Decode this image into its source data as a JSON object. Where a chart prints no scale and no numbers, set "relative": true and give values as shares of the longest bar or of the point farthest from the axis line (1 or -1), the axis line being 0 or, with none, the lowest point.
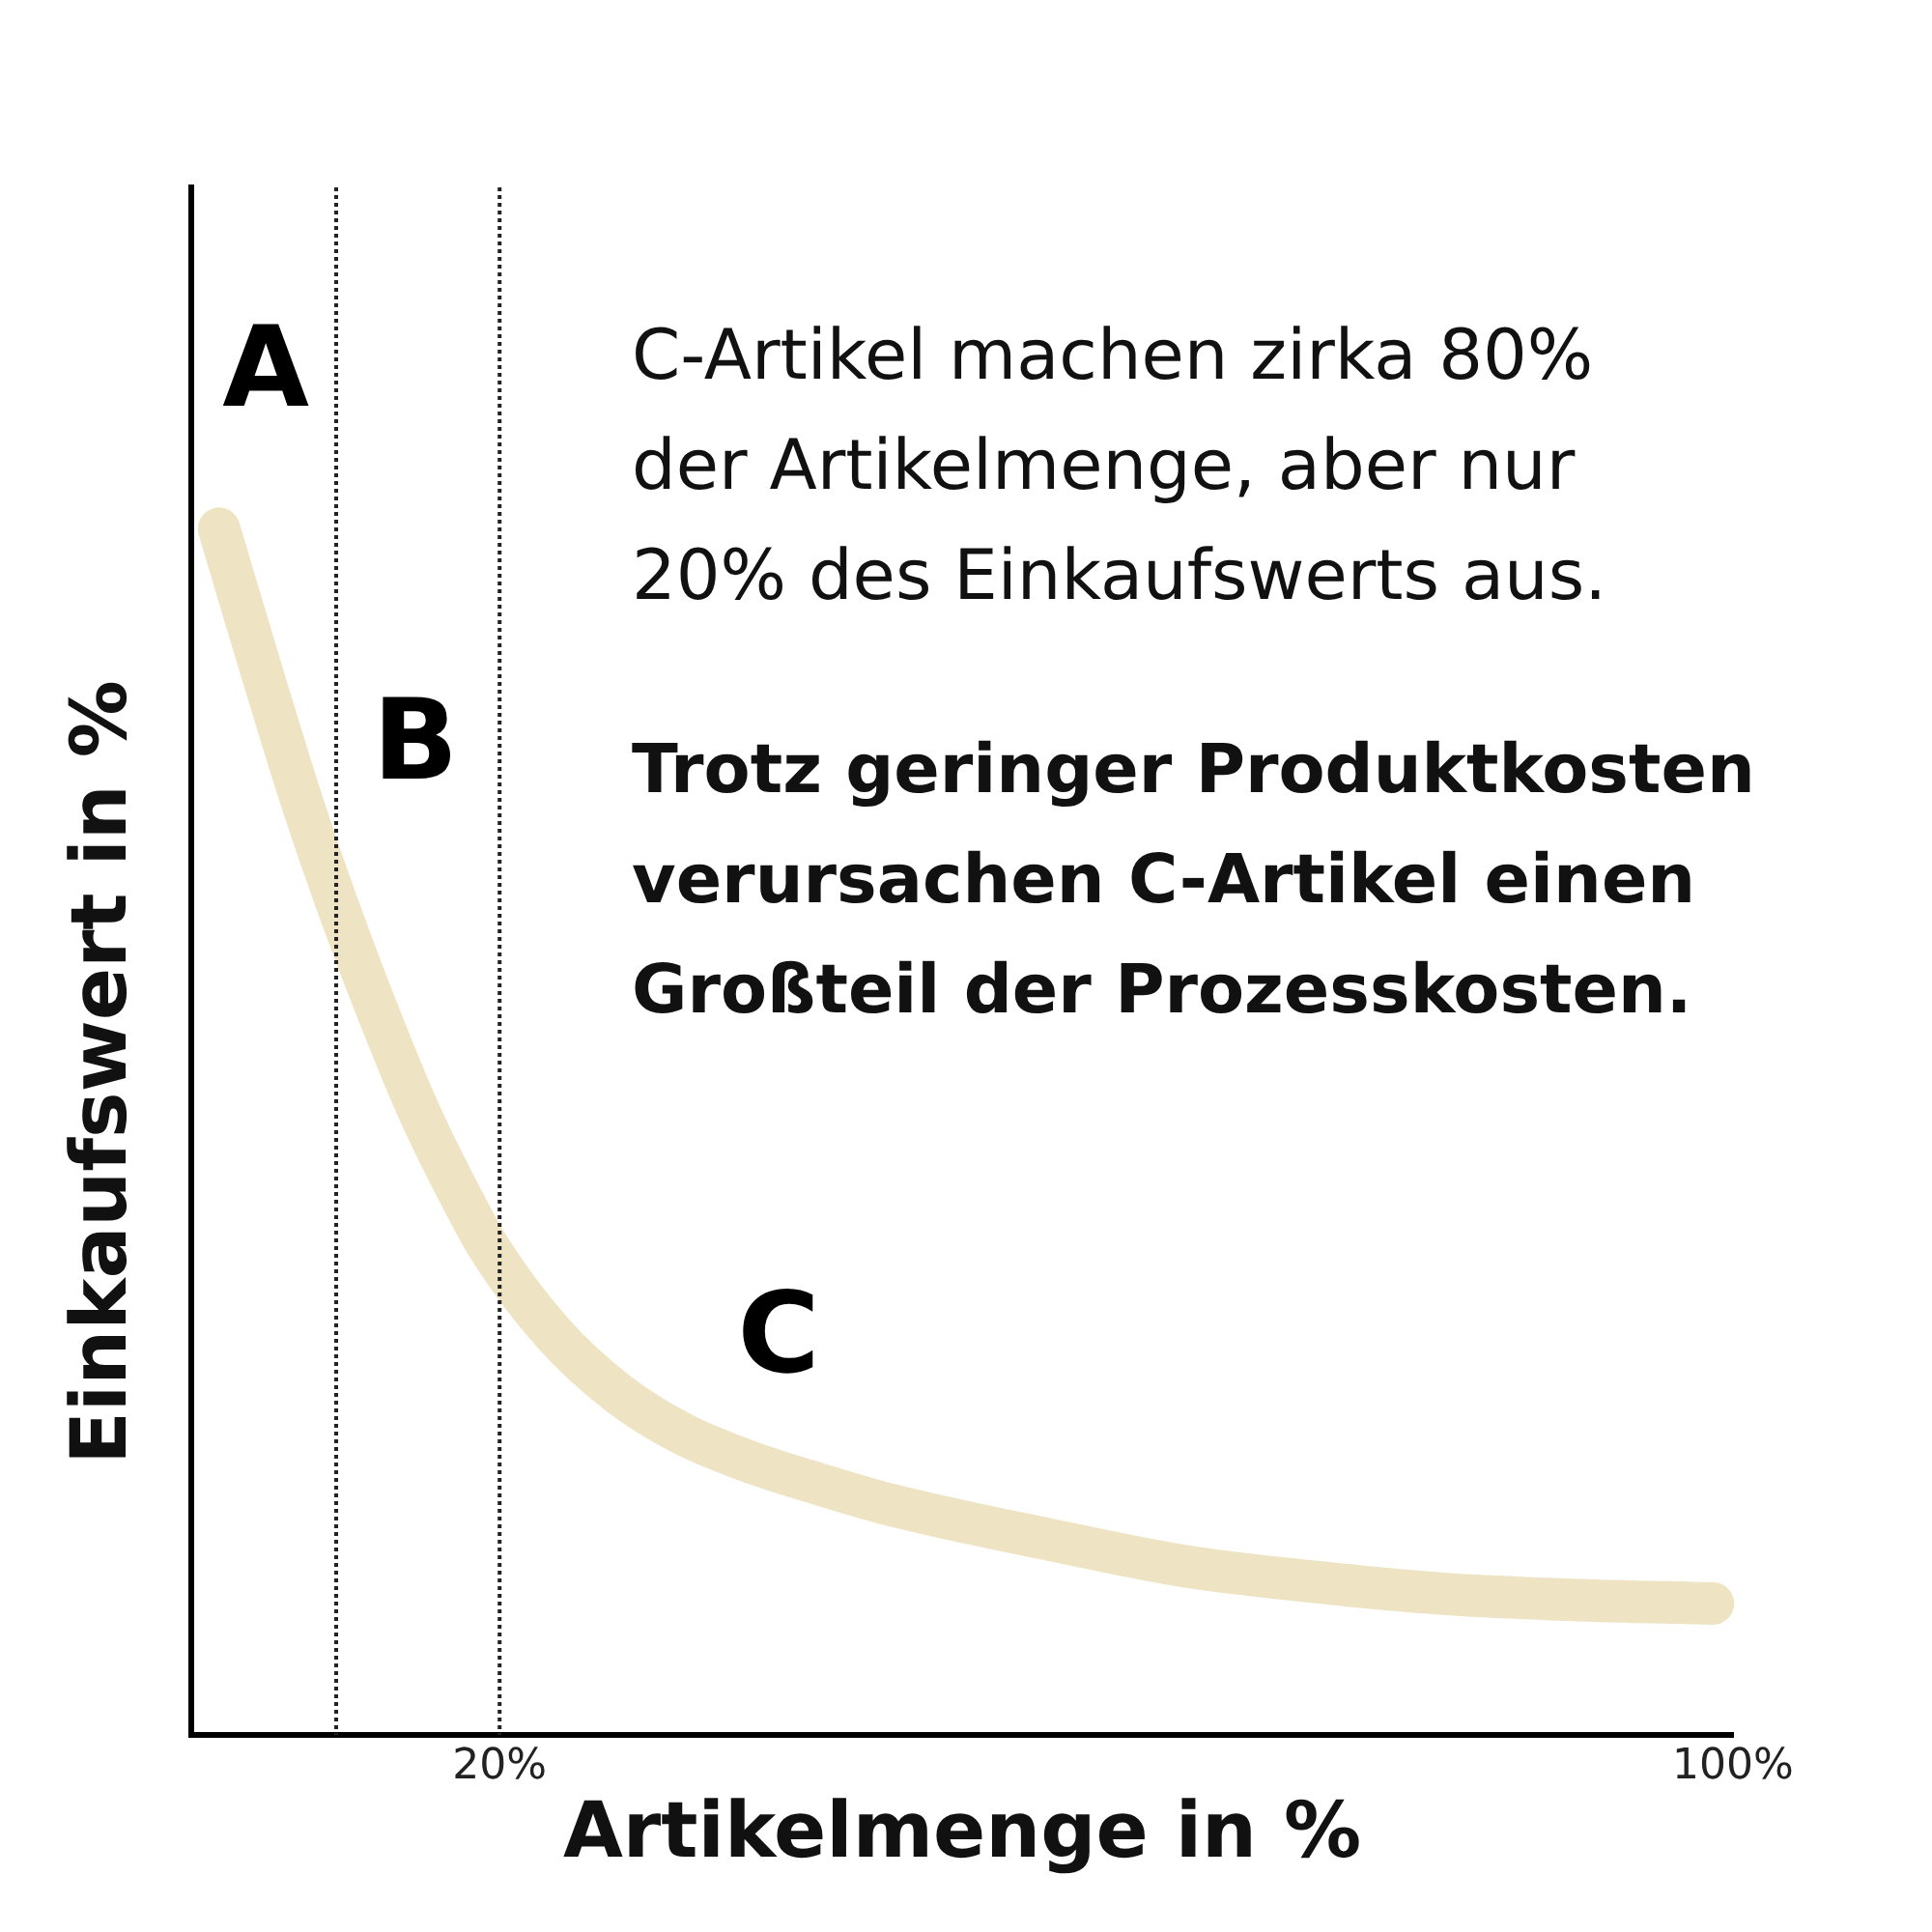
{
  "chart_data": {
    "type": "line",
    "xlabel": "Artikelmenge in %",
    "ylabel": "Einkaufswert in %",
    "x": [
      1.8,
      4.7,
      7.3,
      10.2,
      13.5,
      15.2,
      17.5,
      19.3,
      23.4,
      27.7,
      31.8,
      36.1,
      40.2,
      44.4,
      48.6,
      54.9,
      64.4,
      72.8,
      81.2,
      89.5,
      98.7
    ],
    "values": [
      1,
      0.876,
      0.769,
      0.663,
      0.555,
      0.505,
      0.446,
      0.404,
      0.334,
      0.283,
      0.25,
      0.227,
      0.21,
      0.194,
      0.181,
      0.164,
      0.14,
      0.127,
      0.117,
      0.112,
      0.109
    ],
    "color": "#eee4c4",
    "relative": true,
    "xlim": [
      0,
      100
    ],
    "xticks": [
      {
        "value": 20,
        "label": "20%"
      },
      {
        "value": 100,
        "label": "100%"
      }
    ],
    "ref_lines": [
      {
        "axis": "x",
        "value": 9.4,
        "color": "#222222",
        "line_style": "dotted"
      },
      {
        "axis": "x",
        "value": 20,
        "color": "#222222",
        "line_style": "dotted"
      }
    ],
    "annotations": [
      "A",
      "B",
      "C",
      "C-Artikel machen zirka 80%\nder Artikelmenge, aber nur\n20% des Einkaufswerts aus.",
      "Trotz geringer Produktkosten\nverursachen C-Artikel einen\nGroßteil der Prozesskosten."
    ]
  }
}
